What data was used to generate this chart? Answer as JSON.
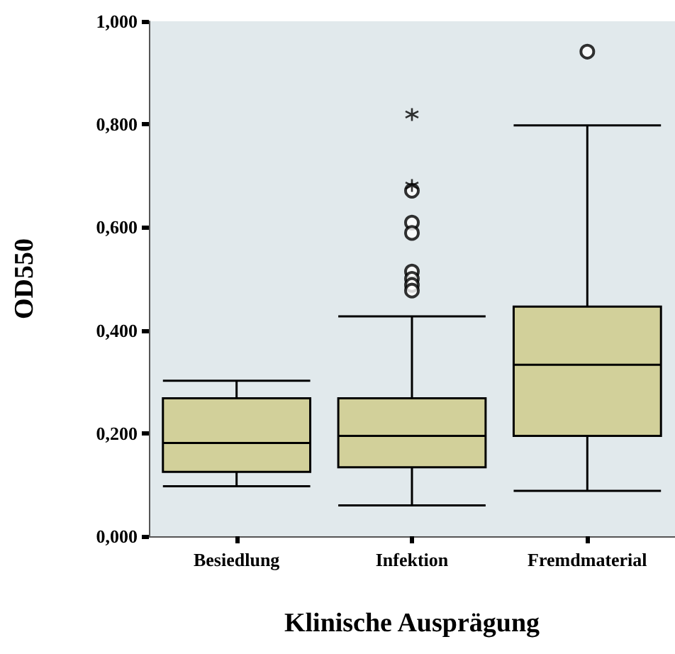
{
  "chart_data": {
    "type": "box",
    "xlabel": "Klinische Ausprägung",
    "ylabel": "OD550",
    "categories": [
      "Besiedlung",
      "Infektion",
      "Fremdmaterial"
    ],
    "ylim": [
      0,
      1
    ],
    "yticks": [
      {
        "value": 0,
        "label": "0,000"
      },
      {
        "value": 0.2,
        "label": "0,200"
      },
      {
        "value": 0.4,
        "label": "0,400"
      },
      {
        "value": 0.6,
        "label": "0,600"
      },
      {
        "value": 0.8,
        "label": "0,800"
      },
      {
        "value": 1,
        "label": "1,000"
      }
    ],
    "series": [
      {
        "type": "box",
        "color": "#d2d09a",
        "boxes": [
          {
            "low": 0.097,
            "q1": 0.125,
            "median": 0.181,
            "q3": 0.268,
            "high": 0.302
          },
          {
            "low": 0.06,
            "q1": 0.134,
            "median": 0.195,
            "q3": 0.268,
            "high": 0.427,
            "outliers": [
              0.609,
              0.589,
              0.514,
              0.5,
              0.488,
              0.477,
              0.671
            ]
          },
          {
            "low": 0.088,
            "q1": 0.195,
            "median": 0.333,
            "q3": 0.446,
            "high": 0.798,
            "outliers": [
              0.941
            ]
          }
        ]
      },
      {
        "type": "scatter",
        "x": [
          "Infektion",
          "Infektion"
        ],
        "values": [
          0.819,
          0.681
        ],
        "marker": "cross",
        "color": "#000000"
      }
    ],
    "grid": false
  }
}
